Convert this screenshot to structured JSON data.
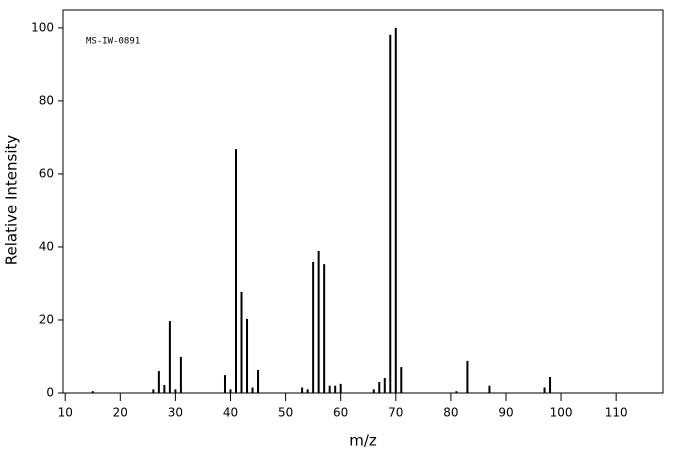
{
  "chart_data": {
    "type": "bar",
    "annotation": "MS-IW-0891",
    "x_label": "m/z",
    "y_label": "Relative Intensity",
    "color": "#000000",
    "x": [
      15,
      26,
      27,
      28,
      29,
      30,
      31,
      39,
      40,
      41,
      42,
      43,
      44,
      45,
      53,
      54,
      55,
      56,
      57,
      58,
      59,
      60,
      66,
      67,
      68,
      69,
      70,
      71,
      81,
      83,
      87,
      97,
      98
    ],
    "values": [
      0.5,
      1,
      6,
      2.2,
      19.7,
      1,
      9.9,
      4.9,
      1,
      66.8,
      27.7,
      20.3,
      1.5,
      6.3,
      1.5,
      1,
      35.9,
      38.9,
      35.3,
      2,
      2,
      2.5,
      1,
      3,
      4.1,
      98.1,
      100,
      7.1,
      0.5,
      8.8,
      2,
      1.5,
      4.4
    ],
    "xlim": [
      9.6,
      118.5
    ],
    "ylim": [
      0,
      104.9
    ],
    "xticks": [
      10,
      20,
      30,
      40,
      50,
      60,
      70,
      80,
      90,
      100,
      110
    ],
    "yticks": [
      0,
      20,
      40,
      60,
      80,
      100
    ]
  }
}
